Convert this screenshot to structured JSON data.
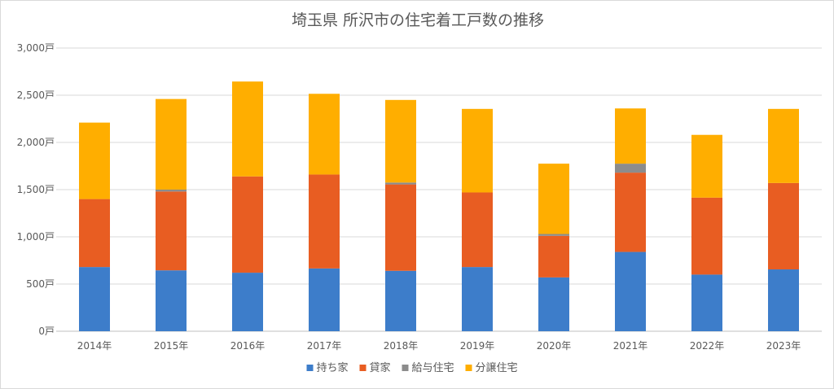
{
  "chart_data": {
    "type": "bar",
    "stacked": true,
    "title": "埼玉県 所沢市の住宅着工戸数の推移",
    "categories": [
      "2014年",
      "2015年",
      "2016年",
      "2017年",
      "2018年",
      "2019年",
      "2020年",
      "2021年",
      "2022年",
      "2023年"
    ],
    "y_ticks": [
      "0戸",
      "500戸",
      "1,000戸",
      "1,500戸",
      "2,000戸",
      "2,500戸",
      "3,000戸"
    ],
    "ylim": [
      0,
      3000
    ],
    "grid": true,
    "legend_position": "bottom",
    "series": [
      {
        "name": "持ち家",
        "color": "#3d7dca",
        "values": [
          680,
          645,
          620,
          665,
          640,
          680,
          570,
          840,
          600,
          655
        ]
      },
      {
        "name": "貸家",
        "color": "#e85d22",
        "values": [
          720,
          835,
          1020,
          995,
          915,
          790,
          440,
          840,
          815,
          915
        ]
      },
      {
        "name": "給与住宅",
        "color": "#8c8c8c",
        "values": [
          0,
          20,
          0,
          0,
          20,
          0,
          20,
          95,
          0,
          0
        ]
      },
      {
        "name": "分譲住宅",
        "color": "#ffae00",
        "values": [
          810,
          960,
          1005,
          855,
          875,
          885,
          745,
          585,
          665,
          785
        ]
      }
    ]
  }
}
